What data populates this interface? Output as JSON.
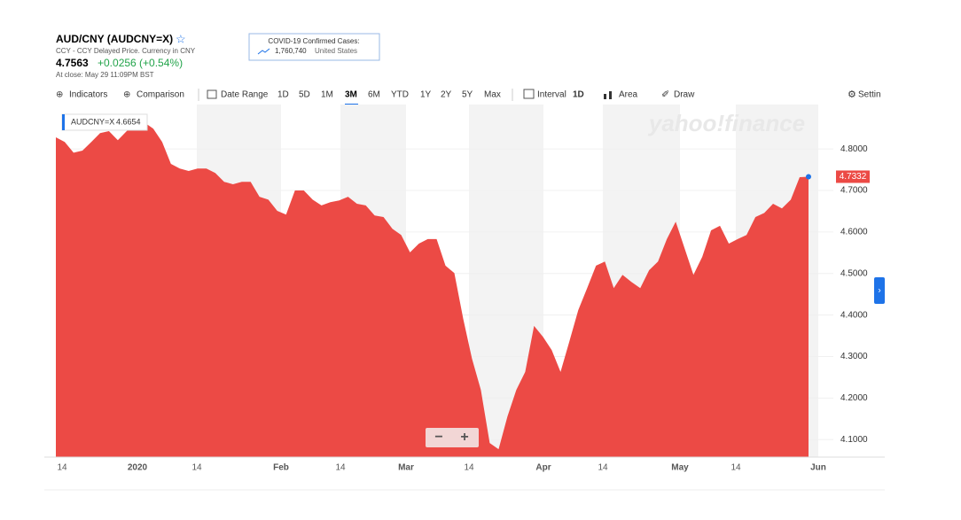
{
  "header": {
    "title": "AUD/CNY (AUDCNY=X)",
    "subtitle": "CCY - CCY Delayed Price. Currency in CNY",
    "price": "4.7563",
    "change": "+0.0256 (+0.54%)",
    "close": "At close: May 29 11:09PM BST"
  },
  "covid": {
    "title": "COVID-19 Confirmed Cases:",
    "count": "1,760,740",
    "region": "United States"
  },
  "toolbar": {
    "indicators": "Indicators",
    "comparison": "Comparison",
    "date_range": "Date Range",
    "ranges": [
      "1D",
      "5D",
      "1M",
      "3M",
      "6M",
      "YTD",
      "1Y",
      "2Y",
      "5Y",
      "Max"
    ],
    "interval": "Interval",
    "interval_value": "1D",
    "chart_type": "Area",
    "draw": "Draw",
    "settings": "Settin"
  },
  "tooltip": {
    "symbol": "AUDCNY=X",
    "value": "4.6654"
  },
  "watermark": "yahoo!finance",
  "zoom": [
    "−",
    "+"
  ],
  "chart_data": {
    "type": "area",
    "color": "#ec4a45",
    "values": [
      4.828,
      4.817,
      4.791,
      4.796,
      4.817,
      4.838,
      4.843,
      4.821,
      4.843,
      4.86,
      4.864,
      4.849,
      4.817,
      4.764,
      4.753,
      4.747,
      4.753,
      4.753,
      4.742,
      4.721,
      4.715,
      4.721,
      4.721,
      4.685,
      4.678,
      4.651,
      4.642,
      4.7,
      4.7,
      4.678,
      4.664,
      4.672,
      4.676,
      4.685,
      4.668,
      4.664,
      4.64,
      4.636,
      4.608,
      4.593,
      4.551,
      4.572,
      4.583,
      4.583,
      4.519,
      4.501,
      4.391,
      4.295,
      4.22,
      4.092,
      4.077,
      4.156,
      4.22,
      4.263,
      4.374,
      4.348,
      4.316,
      4.263,
      4.337,
      4.412,
      4.465,
      4.519,
      4.529,
      4.465,
      4.497,
      4.48,
      4.465,
      4.508,
      4.529,
      4.583,
      4.625,
      4.561,
      4.497,
      4.54,
      4.604,
      4.615,
      4.572,
      4.583,
      4.593,
      4.636,
      4.646,
      4.668,
      4.657,
      4.678,
      4.732,
      4.7332
    ],
    "last_label": "4.7332",
    "x_labels": [
      "14",
      "2020",
      "14",
      "Feb",
      "14",
      "Mar",
      "14",
      "Apr",
      "14",
      "May",
      "14",
      "Jun"
    ],
    "ylim": [
      4.058,
      4.907
    ],
    "yticks": [
      {
        "value": 4.8,
        "label": "4.8000"
      },
      {
        "value": 4.7,
        "label": "4.7000"
      },
      {
        "value": 4.6,
        "label": "4.6000"
      },
      {
        "value": 4.5,
        "label": "4.5000"
      },
      {
        "value": 4.4,
        "label": "4.4000"
      },
      {
        "value": 4.3,
        "label": "4.3000"
      },
      {
        "value": 4.2,
        "label": "4.2000"
      },
      {
        "value": 4.1,
        "label": "4.1000"
      }
    ]
  }
}
